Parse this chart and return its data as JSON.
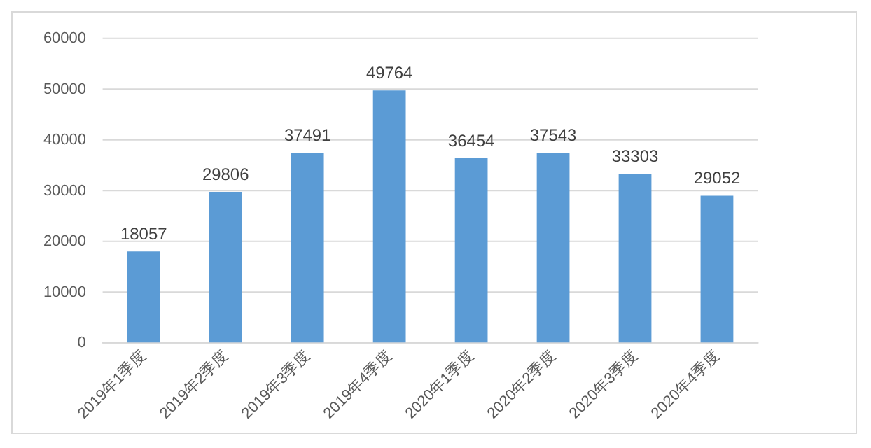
{
  "chart_data": {
    "type": "bar",
    "categories": [
      "2019年1季度",
      "2019年2季度",
      "2019年3季度",
      "2019年4季度",
      "2020年1季度",
      "2020年2季度",
      "2020年3季度",
      "2020年4季度"
    ],
    "values": [
      18057,
      29806,
      37491,
      49764,
      36454,
      37543,
      33303,
      29052
    ],
    "color": "#5b9bd5",
    "ylim": [
      0,
      60000
    ],
    "yticks": [
      0,
      10000,
      20000,
      30000,
      40000,
      50000,
      60000
    ],
    "grid": "y",
    "data_labels": true
  }
}
